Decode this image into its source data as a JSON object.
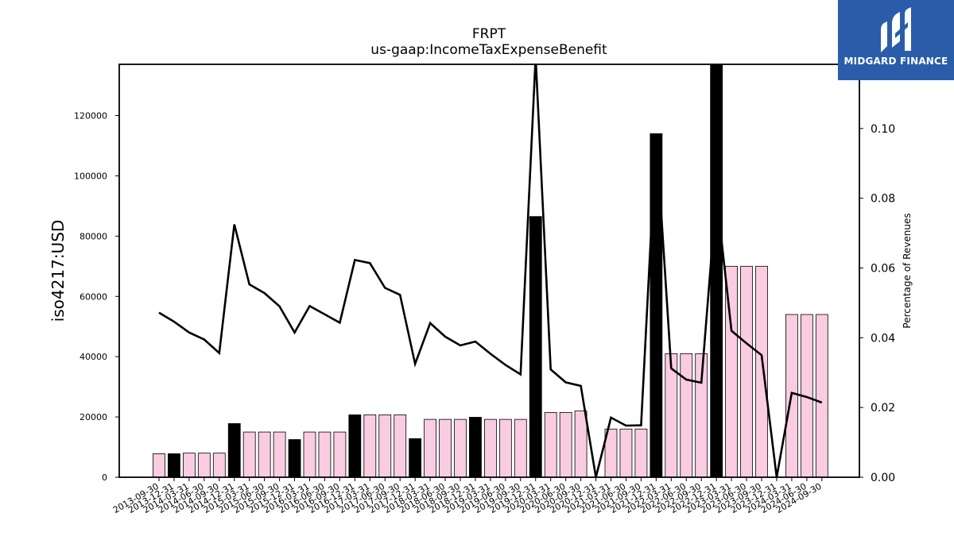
{
  "logo": {
    "text": "MIDGARD FINANCE"
  },
  "chart_data": {
    "type": "bar+line",
    "title": "FRPT",
    "subtitle": "us-gaap:IncomeTaxExpenseBenefit",
    "ylabel": "iso4217:USD",
    "y2label": "Percentage of Revenues",
    "ylim": [
      0,
      137000
    ],
    "y2lim": [
      0,
      0.1184
    ],
    "y_ticks": [
      0,
      20000,
      40000,
      60000,
      80000,
      100000,
      120000
    ],
    "y2_ticks": [
      "0.00",
      "0.02",
      "0.04",
      "0.06",
      "0.08",
      "0.10"
    ],
    "categories": [
      "2013-09-30",
      "2013-12-31",
      "2014-03-31",
      "2014-06-30",
      "2014-09-30",
      "2014-12-31",
      "2015-03-31",
      "2015-06-30",
      "2015-09-30",
      "2015-12-31",
      "2016-03-31",
      "2016-06-30",
      "2016-09-30",
      "2016-12-31",
      "2017-03-31",
      "2017-06-30",
      "2017-09-30",
      "2017-12-31",
      "2018-03-31",
      "2018-06-30",
      "2018-09-30",
      "2018-12-31",
      "2019-03-31",
      "2019-06-30",
      "2019-09-30",
      "2019-12-31",
      "2020-03-31",
      "2020-06-30",
      "2020-09-30",
      "2020-12-31",
      "2021-03-31",
      "2021-06-30",
      "2021-09-30",
      "2021-12-31",
      "2022-03-31",
      "2022-06-30",
      "2022-09-30",
      "2022-12-31",
      "2023-03-31",
      "2023-06-30",
      "2023-09-30",
      "2023-12-31",
      "2024-03-31",
      "2024-06-30",
      "2024-09-30"
    ],
    "bar_series": {
      "values": [
        7800,
        7800,
        8000,
        8000,
        8000,
        17800,
        15000,
        15000,
        15000,
        12500,
        15000,
        15000,
        15000,
        20700,
        20700,
        20700,
        20700,
        12800,
        19200,
        19200,
        19200,
        19900,
        19200,
        19200,
        19200,
        86500,
        21500,
        21500,
        22000,
        0,
        16000,
        16000,
        16000,
        114000,
        41000,
        41000,
        41000,
        137000,
        70000,
        70000,
        70000,
        0,
        54000,
        54000,
        54000
      ],
      "highlight": [
        false,
        true,
        false,
        false,
        false,
        true,
        false,
        false,
        false,
        true,
        false,
        false,
        false,
        true,
        false,
        false,
        false,
        true,
        false,
        false,
        false,
        true,
        false,
        false,
        false,
        true,
        false,
        false,
        false,
        false,
        false,
        false,
        false,
        true,
        false,
        false,
        false,
        true,
        false,
        false,
        false,
        false,
        false,
        false,
        false
      ],
      "present": [
        true,
        true,
        true,
        true,
        true,
        true,
        true,
        true,
        true,
        true,
        true,
        true,
        true,
        true,
        true,
        true,
        true,
        true,
        true,
        true,
        true,
        true,
        true,
        true,
        true,
        true,
        true,
        true,
        true,
        false,
        true,
        true,
        true,
        true,
        true,
        true,
        true,
        true,
        true,
        true,
        true,
        false,
        true,
        true,
        true
      ],
      "fill_color": "#f9cce1",
      "highlight_color": "#000000"
    },
    "line_series": {
      "values": [
        0.0472,
        0.0446,
        0.0415,
        0.0395,
        0.0356,
        0.0725,
        0.0553,
        0.0528,
        0.049,
        0.0415,
        0.0491,
        0.0467,
        0.0443,
        0.0623,
        0.0614,
        0.0543,
        0.0523,
        0.0325,
        0.0442,
        0.0403,
        0.0378,
        0.0389,
        0.0354,
        0.0322,
        0.0295,
        0.1205,
        0.0309,
        0.0272,
        0.0262,
        0.0,
        0.0171,
        0.0148,
        0.0149,
        0.0983,
        0.0312,
        0.028,
        0.0271,
        0.0813,
        0.042,
        0.0384,
        0.035,
        0.0,
        0.0242,
        0.023,
        0.0214
      ],
      "color": "#000000"
    },
    "grid": false,
    "legend": "none"
  }
}
